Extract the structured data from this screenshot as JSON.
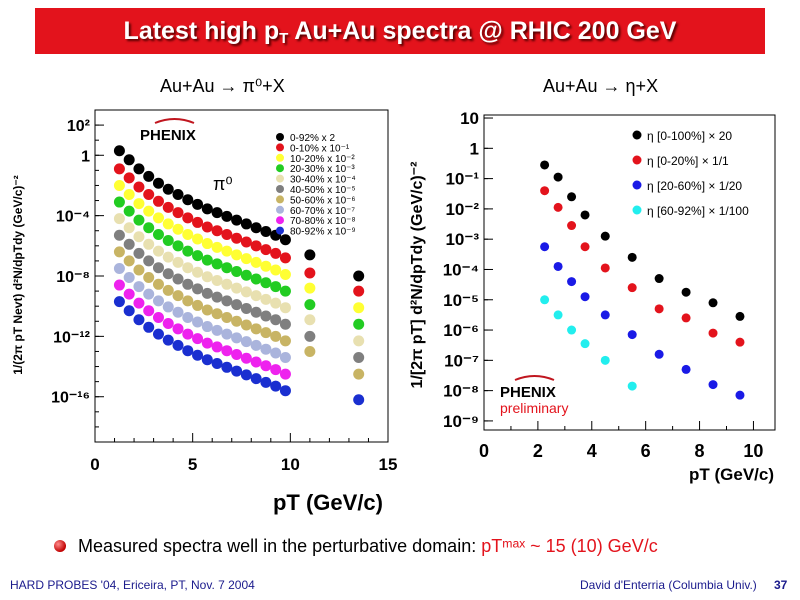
{
  "slide": {
    "title": "Latest high pT Au+Au spectra @ RHIC 200 GeV",
    "title_main": "Latest high p",
    "title_sub": "T",
    "title_rest": " Au+Au spectra @ RHIC 200 GeV",
    "left_subtitle": "Au+Au → π⁰+X",
    "right_subtitle": "Au+Au → η+X",
    "bullet_text": "Measured spectra well in the perturbative domain: ",
    "bullet_highlight": "pTᵐᵃˣ ~ 15 (10) GeV/c",
    "footer_left": "HARD PROBES '04, Ericeira, PT, Nov. 7 2004",
    "footer_right": "David d'Enterria (Columbia Univ.)",
    "page_number": "37",
    "accent_color": "#e3131c",
    "footer_color": "#1a1a8c"
  },
  "chart_data": [
    {
      "type": "scatter",
      "particle_label": "π⁰",
      "logo": "PHENIX",
      "xlabel": "pT (GeV/c)",
      "ylabel": "1/(2π pT Nevt) d²N/dpTdy (GeV/c)⁻²",
      "xlim": [
        0,
        15
      ],
      "ylim_log10": [
        -19,
        3
      ],
      "yscale": "log",
      "x_ticks": [
        "0",
        "5",
        "10",
        "15"
      ],
      "y_ticks": [
        "10²",
        "1",
        "10⁻⁴",
        "10⁻⁸",
        "10⁻¹²",
        "10⁻¹⁶"
      ],
      "legend_placement": "top-right",
      "series": [
        {
          "name": "0-92% x 2",
          "color": "#000000",
          "x": [
            1.25,
            1.75,
            2.25,
            2.75,
            3.25,
            3.75,
            4.25,
            4.75,
            5.25,
            5.75,
            6.25,
            6.75,
            7.25,
            7.75,
            8.25,
            8.75,
            9.25,
            9.75,
            11.0,
            13.5
          ],
          "log10_y": [
            0.3,
            -0.3,
            -0.9,
            -1.4,
            -1.85,
            -2.25,
            -2.6,
            -2.95,
            -3.25,
            -3.55,
            -3.8,
            -4.05,
            -4.3,
            -4.55,
            -4.8,
            -5.05,
            -5.3,
            -5.6,
            -6.6,
            -8.0
          ]
        },
        {
          "name": "0-10% x 10⁻¹",
          "color": "#e3131c",
          "x": [
            1.25,
            1.75,
            2.25,
            2.75,
            3.25,
            3.75,
            4.25,
            4.75,
            5.25,
            5.75,
            6.25,
            6.75,
            7.25,
            7.75,
            8.25,
            8.75,
            9.25,
            9.75,
            11.0,
            13.5
          ],
          "log10_y": [
            -0.9,
            -1.5,
            -2.1,
            -2.6,
            -3.05,
            -3.45,
            -3.8,
            -4.15,
            -4.45,
            -4.75,
            -5.0,
            -5.25,
            -5.5,
            -5.75,
            -6.0,
            -6.25,
            -6.5,
            -6.8,
            -7.8,
            -9.0
          ]
        },
        {
          "name": "10-20% x 10⁻²",
          "color": "#ffff33",
          "x": [
            1.25,
            1.75,
            2.25,
            2.75,
            3.25,
            3.75,
            4.25,
            4.75,
            5.25,
            5.75,
            6.25,
            6.75,
            7.25,
            7.75,
            8.25,
            8.75,
            9.25,
            9.75,
            11.0,
            13.5
          ],
          "log10_y": [
            -2.0,
            -2.6,
            -3.2,
            -3.7,
            -4.15,
            -4.55,
            -4.9,
            -5.25,
            -5.55,
            -5.85,
            -6.1,
            -6.35,
            -6.6,
            -6.85,
            -7.1,
            -7.35,
            -7.6,
            -7.9,
            -8.8,
            -10.1
          ]
        },
        {
          "name": "20-30% x 10⁻³",
          "color": "#22cc22",
          "x": [
            1.25,
            1.75,
            2.25,
            2.75,
            3.25,
            3.75,
            4.25,
            4.75,
            5.25,
            5.75,
            6.25,
            6.75,
            7.25,
            7.75,
            8.25,
            8.75,
            9.25,
            9.75,
            11.0,
            13.5
          ],
          "log10_y": [
            -3.1,
            -3.7,
            -4.3,
            -4.8,
            -5.25,
            -5.65,
            -6.0,
            -6.35,
            -6.65,
            -6.95,
            -7.2,
            -7.45,
            -7.7,
            -7.95,
            -8.2,
            -8.45,
            -8.7,
            -9.0,
            -9.9,
            -11.2
          ]
        },
        {
          "name": "30-40% x 10⁻⁴",
          "color": "#e8e0b0",
          "x": [
            1.25,
            1.75,
            2.25,
            2.75,
            3.25,
            3.75,
            4.25,
            4.75,
            5.25,
            5.75,
            6.25,
            6.75,
            7.25,
            7.75,
            8.25,
            8.75,
            9.25,
            9.75,
            11.0,
            13.5
          ],
          "log10_y": [
            -4.2,
            -4.8,
            -5.4,
            -5.9,
            -6.35,
            -6.75,
            -7.1,
            -7.45,
            -7.75,
            -8.05,
            -8.3,
            -8.55,
            -8.8,
            -9.05,
            -9.3,
            -9.55,
            -9.8,
            -10.1,
            -10.9,
            -12.3
          ]
        },
        {
          "name": "40-50% x 10⁻⁵",
          "color": "#7f7f7f",
          "x": [
            1.25,
            1.75,
            2.25,
            2.75,
            3.25,
            3.75,
            4.25,
            4.75,
            5.25,
            5.75,
            6.25,
            6.75,
            7.25,
            7.75,
            8.25,
            8.75,
            9.25,
            9.75,
            11.0,
            13.5
          ],
          "log10_y": [
            -5.3,
            -5.9,
            -6.5,
            -7.0,
            -7.45,
            -7.85,
            -8.2,
            -8.55,
            -8.85,
            -9.15,
            -9.4,
            -9.65,
            -9.9,
            -10.15,
            -10.4,
            -10.65,
            -10.9,
            -11.2,
            -12.0,
            -13.4
          ]
        },
        {
          "name": "50-60% x 10⁻⁶",
          "color": "#c8b464",
          "x": [
            1.25,
            1.75,
            2.25,
            2.75,
            3.25,
            3.75,
            4.25,
            4.75,
            5.25,
            5.75,
            6.25,
            6.75,
            7.25,
            7.75,
            8.25,
            8.75,
            9.25,
            9.75,
            11.0,
            13.5
          ],
          "log10_y": [
            -6.4,
            -7.0,
            -7.6,
            -8.1,
            -8.55,
            -8.95,
            -9.3,
            -9.65,
            -9.95,
            -10.25,
            -10.5,
            -10.75,
            -11.0,
            -11.25,
            -11.5,
            -11.75,
            -12.0,
            -12.3,
            -13.0,
            -14.5
          ]
        },
        {
          "name": "60-70% x 10⁻⁷",
          "color": "#aab4dc",
          "x": [
            1.25,
            1.75,
            2.25,
            2.75,
            3.25,
            3.75,
            4.25,
            4.75,
            5.25,
            5.75,
            6.25,
            6.75,
            7.25,
            7.75,
            8.25,
            8.75,
            9.25,
            9.75
          ],
          "log10_y": [
            -7.5,
            -8.1,
            -8.7,
            -9.2,
            -9.65,
            -10.05,
            -10.4,
            -10.75,
            -11.05,
            -11.35,
            -11.6,
            -11.85,
            -12.1,
            -12.35,
            -12.6,
            -12.85,
            -13.1,
            -13.4
          ]
        },
        {
          "name": "70-80% x 10⁻⁸",
          "color": "#ee22ee",
          "x": [
            1.25,
            1.75,
            2.25,
            2.75,
            3.25,
            3.75,
            4.25,
            4.75,
            5.25,
            5.75,
            6.25,
            6.75,
            7.25,
            7.75,
            8.25,
            8.75,
            9.25,
            9.75
          ],
          "log10_y": [
            -8.6,
            -9.2,
            -9.8,
            -10.3,
            -10.75,
            -11.15,
            -11.5,
            -11.85,
            -12.15,
            -12.45,
            -12.7,
            -12.95,
            -13.2,
            -13.45,
            -13.7,
            -13.95,
            -14.2,
            -14.5
          ]
        },
        {
          "name": "80-92% x 10⁻⁹",
          "color": "#1a2fd0",
          "x": [
            1.25,
            1.75,
            2.25,
            2.75,
            3.25,
            3.75,
            4.25,
            4.75,
            5.25,
            5.75,
            6.25,
            6.75,
            7.25,
            7.75,
            8.25,
            8.75,
            9.25,
            9.75,
            13.5
          ],
          "log10_y": [
            -9.7,
            -10.3,
            -10.9,
            -11.4,
            -11.85,
            -12.25,
            -12.6,
            -12.95,
            -13.25,
            -13.55,
            -13.8,
            -14.05,
            -14.3,
            -14.55,
            -14.8,
            -15.05,
            -15.3,
            -15.6,
            -16.2
          ]
        }
      ]
    },
    {
      "type": "scatter",
      "logo": "PHENIX",
      "logo_note": "preliminary",
      "xlabel": "pT (GeV/c)",
      "ylabel": "1/[2π pT] d²N/dpTdy (GeV/c)⁻²",
      "xlim": [
        0,
        10.8
      ],
      "ylim_log10": [
        -9.3,
        1.1
      ],
      "yscale": "log",
      "x_ticks": [
        "0",
        "2",
        "4",
        "6",
        "8",
        "10"
      ],
      "y_ticks": [
        "10",
        "1",
        "10⁻¹",
        "10⁻²",
        "10⁻³",
        "10⁻⁴",
        "10⁻⁵",
        "10⁻⁶",
        "10⁻⁷",
        "10⁻⁸",
        "10⁻⁹"
      ],
      "legend_placement": "top-right",
      "series": [
        {
          "name": "η [0-100%]  × 20",
          "color": "#000000",
          "x": [
            2.25,
            2.75,
            3.25,
            3.75,
            4.5,
            5.5,
            6.5,
            7.5,
            8.5,
            9.5
          ],
          "log10_y": [
            -0.55,
            -0.95,
            -1.6,
            -2.2,
            -2.9,
            -3.6,
            -4.3,
            -4.75,
            -5.1,
            -5.55
          ]
        },
        {
          "name": "η [0-20%]  × 1/1",
          "color": "#e3131c",
          "x": [
            2.25,
            2.75,
            3.25,
            3.75,
            4.5,
            5.5,
            6.5,
            7.5,
            8.5,
            9.5
          ],
          "log10_y": [
            -1.4,
            -1.95,
            -2.55,
            -3.25,
            -3.95,
            -4.6,
            -5.3,
            -5.6,
            -6.1,
            -6.4
          ]
        },
        {
          "name": "η [20-60%]  × 1/20",
          "color": "#1a1ae6",
          "x": [
            2.25,
            2.75,
            3.25,
            3.75,
            4.5,
            5.5,
            6.5,
            7.5,
            8.5,
            9.5
          ],
          "log10_y": [
            -3.25,
            -3.9,
            -4.4,
            -4.9,
            -5.5,
            -6.15,
            -6.8,
            -7.3,
            -7.8,
            -8.15
          ]
        },
        {
          "name": "η [60-92%]  × 1/100",
          "color": "#22eeee",
          "x": [
            2.25,
            2.75,
            3.25,
            3.75,
            4.5,
            5.5
          ],
          "log10_y": [
            -5.0,
            -5.5,
            -6.0,
            -6.45,
            -7.0,
            -7.85
          ]
        }
      ]
    }
  ]
}
